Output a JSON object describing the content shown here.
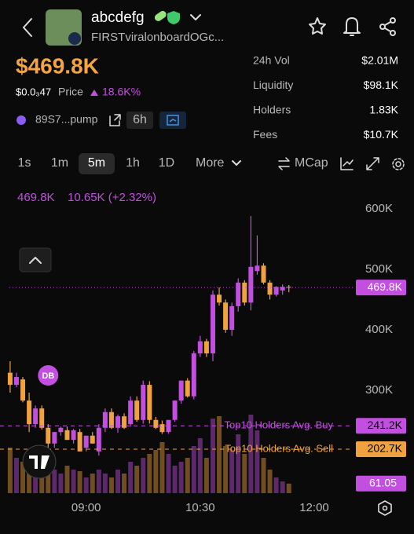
{
  "header": {
    "name": "abcdefg",
    "subtitle": "FIRSTviralonboardOGc...",
    "mcap": "$469.8K",
    "price": "$0.0₃47",
    "price_label": "Price",
    "change": "18.6K%",
    "address": "89S7...pump",
    "age": "6h"
  },
  "stats": [
    {
      "label": "24h Vol",
      "value": "$2.01M"
    },
    {
      "label": "Liquidity",
      "value": "$98.1K"
    },
    {
      "label": "Holders",
      "value": "1.83K"
    },
    {
      "label": "Fees",
      "value": "$10.7K"
    }
  ],
  "timeframes": [
    "1s",
    "1m",
    "5m",
    "1h",
    "1D"
  ],
  "timeframe_selected": 2,
  "more": "More",
  "mcap_toggle": "MCap",
  "chart_data": {
    "type": "candlestick",
    "info": [
      "469.8K",
      "10.65K (+2.32%)"
    ],
    "x": [
      "08:00",
      "08:05",
      "08:10",
      "08:15",
      "08:20",
      "08:25",
      "08:30",
      "08:35",
      "08:40",
      "08:45",
      "08:50",
      "08:55",
      "09:00",
      "09:05",
      "09:10",
      "09:15",
      "09:20",
      "09:25",
      "09:30",
      "09:35",
      "09:40",
      "09:45",
      "09:50",
      "09:55",
      "10:00",
      "10:05",
      "10:10",
      "10:15",
      "10:20",
      "10:25",
      "10:30",
      "10:35",
      "10:40",
      "10:45",
      "10:50",
      "10:55",
      "11:00",
      "11:05",
      "11:10",
      "11:15",
      "11:20",
      "11:25",
      "11:30",
      "11:35",
      "11:40"
    ],
    "open": [
      329,
      309,
      318,
      283,
      244,
      270,
      238,
      212,
      231,
      234,
      218,
      231,
      205,
      225,
      199,
      238,
      264,
      238,
      257,
      244,
      283,
      251,
      309,
      251,
      244,
      231,
      251,
      283,
      316,
      290,
      361,
      381,
      361,
      458,
      445,
      400,
      439,
      478,
      445,
      497,
      506,
      478,
      458,
      465,
      471
    ],
    "high": [
      348,
      329,
      322,
      296,
      275,
      275,
      244,
      231,
      240,
      240,
      236,
      236,
      225,
      231,
      244,
      270,
      270,
      260,
      262,
      290,
      290,
      316,
      315,
      256,
      250,
      251,
      283,
      316,
      320,
      365,
      390,
      385,
      465,
      470,
      450,
      445,
      485,
      482,
      588,
      556,
      510,
      482,
      472,
      475,
      474
    ],
    "low": [
      296,
      305,
      280,
      231,
      238,
      235,
      192,
      205,
      225,
      218,
      212,
      199,
      199,
      212,
      192,
      231,
      236,
      230,
      236,
      240,
      248,
      245,
      245,
      236,
      228,
      228,
      248,
      278,
      288,
      285,
      355,
      355,
      348,
      440,
      395,
      390,
      430,
      440,
      432,
      491,
      475,
      450,
      455,
      458,
      462
    ],
    "close": [
      309,
      322,
      283,
      244,
      270,
      238,
      212,
      231,
      238,
      218,
      234,
      199,
      225,
      212,
      238,
      264,
      238,
      257,
      238,
      283,
      251,
      309,
      251,
      238,
      231,
      251,
      283,
      316,
      290,
      361,
      381,
      361,
      458,
      445,
      400,
      439,
      478,
      445,
      504,
      506,
      478,
      458,
      471,
      471,
      469.8
    ],
    "volume": [
      290,
      225,
      200,
      275,
      250,
      200,
      175,
      150,
      125,
      175,
      150,
      140,
      100,
      125,
      150,
      125,
      100,
      150,
      125,
      200,
      175,
      225,
      250,
      275,
      325,
      250,
      175,
      200,
      225,
      300,
      350,
      225,
      475,
      490,
      300,
      275,
      375,
      250,
      500,
      400,
      225,
      150,
      100,
      75,
      61.05
    ],
    "up_color": "#c24fe0",
    "down_color": "#f0a23e",
    "xlim": [
      "07:52",
      "12:31"
    ],
    "xticks": [
      "09:00",
      "10:30",
      "12:00"
    ],
    "ylim": [
      130,
      640
    ],
    "yticks": [
      {
        "value": 300,
        "label": "300K"
      },
      {
        "value": 400,
        "label": "400K"
      },
      {
        "value": 500,
        "label": "500K"
      },
      {
        "value": 600,
        "label": "600K"
      }
    ],
    "y2lim": [
      0,
      500
    ],
    "last_price": {
      "value": 469.8,
      "label": "469.8K"
    },
    "reference_lines": [
      {
        "name": "Top10 Holders Avg. Buy",
        "value": 241.2,
        "label": "241.2K",
        "color": "#c24fe0"
      },
      {
        "name": "Top10 Holders Avg. Sell",
        "value": 202.7,
        "label": "202.7K",
        "color": "#f0a23e"
      }
    ],
    "annotations": [
      {
        "x": "08:30",
        "text": "DB"
      }
    ]
  }
}
